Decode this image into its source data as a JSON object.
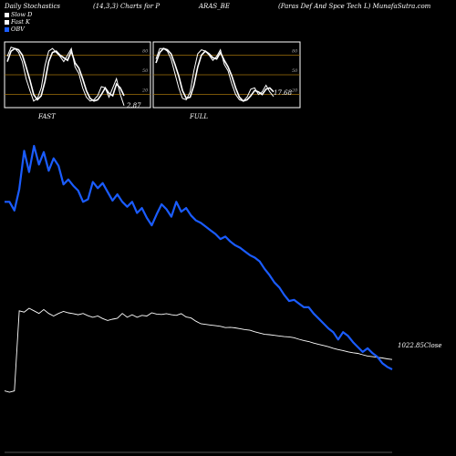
{
  "header": {
    "col1": "Daily Stochastics",
    "col2": "(14,3,3) Charts for P",
    "col3": "ARAS_BE",
    "col4": "(Paras Def And Spce   Tech L) MunafaSutra.com"
  },
  "legend": [
    {
      "label": "Slow  D",
      "color": "#ffffff"
    },
    {
      "label": "Fast  K",
      "color": "#ffffff"
    },
    {
      "label": "OBV",
      "color": "#1a5cff"
    }
  ],
  "colors": {
    "obv": "#1a5cff",
    "stoch": "#ffffff",
    "grid": "#a0700a",
    "close": "#ffffff"
  },
  "chart_data": [
    {
      "type": "line",
      "name": "fast_panel",
      "title": "FAST",
      "ylim": [
        0,
        100
      ],
      "yticks": [
        20,
        50,
        80
      ],
      "last_value_label": "2.87",
      "series": [
        {
          "name": "Slow D",
          "values": [
            70,
            86,
            90,
            88,
            80,
            62,
            42,
            20,
            12,
            18,
            40,
            70,
            84,
            86,
            80,
            76,
            72,
            86,
            68,
            60,
            44,
            26,
            14,
            10,
            12,
            20,
            30,
            22,
            18,
            36,
            30,
            18
          ]
        },
        {
          "name": "Fast K",
          "values": [
            78,
            92,
            90,
            84,
            70,
            44,
            26,
            10,
            14,
            30,
            64,
            86,
            90,
            84,
            78,
            70,
            80,
            90,
            62,
            52,
            30,
            16,
            10,
            12,
            18,
            32,
            30,
            16,
            30,
            44,
            20,
            3
          ]
        }
      ]
    },
    {
      "type": "line",
      "name": "full_panel",
      "title": "FULL",
      "ylim": [
        0,
        100
      ],
      "yticks": [
        20,
        50,
        80
      ],
      "last_value_label": "17.68",
      "series": [
        {
          "name": "Slow D",
          "values": [
            68,
            84,
            90,
            88,
            82,
            66,
            48,
            26,
            14,
            16,
            34,
            62,
            80,
            86,
            82,
            76,
            74,
            84,
            72,
            62,
            48,
            30,
            16,
            10,
            12,
            18,
            26,
            24,
            20,
            28,
            30,
            24
          ]
        },
        {
          "name": "Fast K",
          "values": [
            74,
            90,
            90,
            86,
            74,
            52,
            30,
            14,
            12,
            24,
            56,
            82,
            88,
            86,
            80,
            72,
            78,
            88,
            66,
            56,
            36,
            20,
            12,
            10,
            16,
            28,
            30,
            20,
            24,
            34,
            24,
            17
          ]
        }
      ]
    },
    {
      "type": "line",
      "name": "obv_close_panel",
      "close_label": "1022.85",
      "close_suffix": "Close",
      "series": [
        {
          "name": "OBV",
          "values": [
            -40,
            -40,
            -54,
            -20,
            42,
            8,
            50,
            20,
            40,
            10,
            30,
            18,
            -12,
            -4,
            -14,
            -22,
            -40,
            -36,
            -8,
            -18,
            -10,
            -24,
            -38,
            -28,
            -40,
            -48,
            -40,
            -58,
            -50,
            -66,
            -78,
            -60,
            -44,
            -52,
            -64,
            -40,
            -56,
            -50,
            -62,
            -70,
            -74,
            -80,
            -86,
            -92,
            -100,
            -96,
            -104,
            -110,
            -114,
            -120,
            -126,
            -130,
            -136,
            -148,
            -158,
            -170,
            -178,
            -190,
            -200,
            -198,
            -204,
            -210,
            -210,
            -220,
            -228,
            -236,
            -244,
            -250,
            -262,
            -250,
            -256,
            -266,
            -274,
            -282,
            -276,
            -284,
            -290,
            -300,
            -306,
            -310
          ]
        },
        {
          "name": "Close",
          "values": [
            780,
            770,
            780,
            1400,
            1390,
            1420,
            1400,
            1380,
            1410,
            1380,
            1360,
            1380,
            1395,
            1385,
            1378,
            1370,
            1380,
            1362,
            1350,
            1360,
            1340,
            1325,
            1335,
            1342,
            1380,
            1350,
            1370,
            1350,
            1365,
            1360,
            1385,
            1375,
            1372,
            1378,
            1370,
            1365,
            1378,
            1352,
            1345,
            1320,
            1300,
            1295,
            1290,
            1285,
            1280,
            1270,
            1272,
            1268,
            1262,
            1255,
            1250,
            1238,
            1228,
            1218,
            1215,
            1210,
            1205,
            1200,
            1198,
            1192,
            1180,
            1170,
            1162,
            1150,
            1140,
            1132,
            1122,
            1110,
            1100,
            1092,
            1082,
            1075,
            1070,
            1060,
            1050,
            1045,
            1040,
            1035,
            1028,
            1022.85
          ]
        }
      ]
    }
  ]
}
